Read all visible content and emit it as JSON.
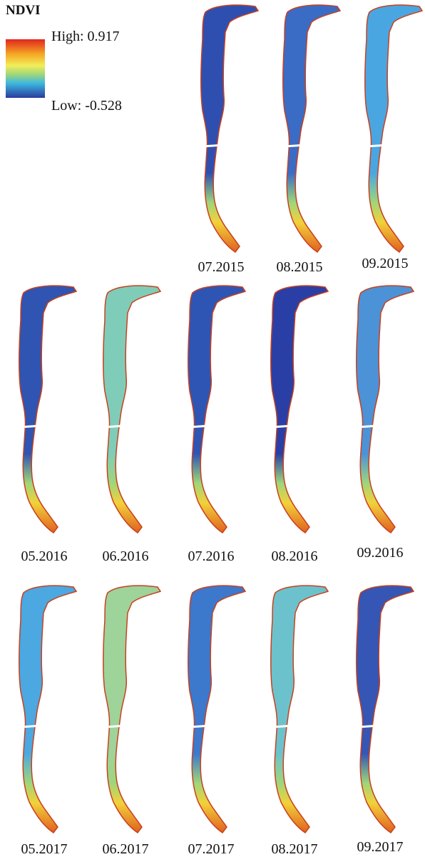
{
  "legend": {
    "title": "NDVI",
    "high": "High: 0.917",
    "low": "Low: -0.528"
  },
  "panels": [
    {
      "label": "07.2015",
      "color": "#2f4fb0"
    },
    {
      "label": "08.2015",
      "color": "#3a6cc6"
    },
    {
      "label": "09.2015",
      "color": "#4aa6e0"
    },
    {
      "label": "05.2016",
      "color": "#3054b2"
    },
    {
      "label": "06.2016",
      "color": "#7fcdb8"
    },
    {
      "label": "07.2016",
      "color": "#2f55b4"
    },
    {
      "label": "08.2016",
      "color": "#2a3fa6"
    },
    {
      "label": "09.2016",
      "color": "#4c92d6"
    },
    {
      "label": "05.2017",
      "color": "#4ba8e0"
    },
    {
      "label": "06.2017",
      "color": "#9ed39a"
    },
    {
      "label": "07.2017",
      "color": "#3c78cc"
    },
    {
      "label": "08.2017",
      "color": "#6cc2cc"
    },
    {
      "label": "09.2017",
      "color": "#3556b4"
    }
  ]
}
